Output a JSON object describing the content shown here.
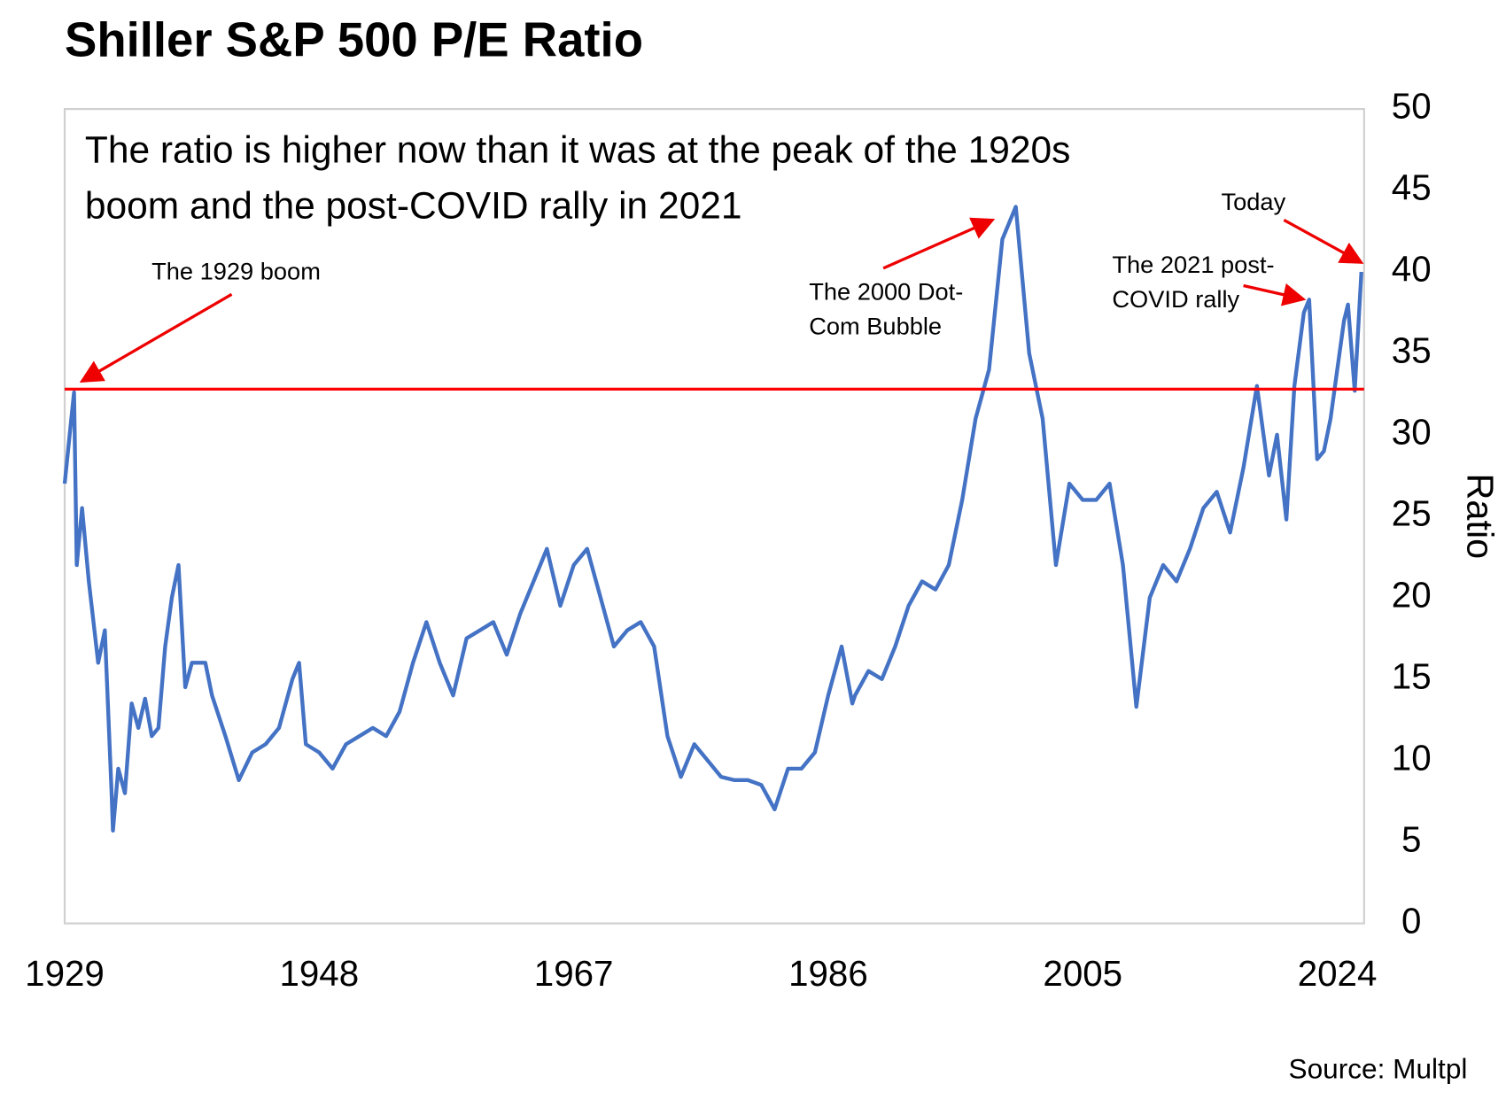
{
  "chart_data": {
    "type": "line",
    "title": "Shiller S&P 500 P/E Ratio",
    "subtitle": [
      "The ratio is higher now than it was at the peak of the 1920s",
      "boom and the post-COVID rally in 2021"
    ],
    "y_label": "Ratio",
    "source": "Source: Multpl",
    "color": "#4472c4",
    "x": [
      1929.0,
      1929.5,
      1929.7,
      1929.9,
      1930.3,
      1930.8,
      1931.5,
      1932.0,
      1932.5,
      1932.6,
      1933.0,
      1933.5,
      1934.0,
      1934.5,
      1935.0,
      1935.5,
      1936.0,
      1936.5,
      1937.0,
      1937.5,
      1938.0,
      1938.5,
      1939.5,
      1940,
      1941,
      1942,
      1943,
      1944,
      1945,
      1946,
      1946.5,
      1947,
      1948,
      1949,
      1950,
      1951,
      1952,
      1953,
      1954,
      1955,
      1956,
      1957,
      1958,
      1959,
      1960,
      1961,
      1962,
      1963,
      1964,
      1965,
      1966,
      1967,
      1968,
      1969,
      1970,
      1971,
      1972,
      1973,
      1974,
      1975,
      1976,
      1977,
      1978,
      1979,
      1980,
      1981,
      1982,
      1983,
      1984,
      1985,
      1986,
      1987,
      1987.8,
      1988,
      1989,
      1990,
      1991,
      1992,
      1993,
      1994,
      1995,
      1996,
      1997,
      1998,
      1999,
      2000,
      2001,
      2002,
      2003,
      2004,
      2005,
      2006,
      2007,
      2008,
      2009,
      2010,
      2011,
      2012,
      2013,
      2014,
      2015,
      2016,
      2017,
      2018,
      2018.9,
      2019.5,
      2020.2,
      2020.8,
      2021.5,
      2021.9,
      2022.5,
      2023,
      2023.5,
      2024,
      2024.5,
      2024.8,
      2025.3,
      2025.8
    ],
    "values": [
      27,
      31,
      32.6,
      22,
      25.5,
      21,
      16,
      18,
      8,
      5.7,
      9.5,
      8,
      13.5,
      12,
      13.8,
      11.5,
      12,
      17,
      20,
      22,
      14.5,
      16,
      16,
      14,
      11.5,
      8.8,
      10.5,
      11,
      12,
      15,
      16,
      11,
      10.5,
      9.5,
      11,
      11.5,
      12,
      11.5,
      13,
      16,
      18.5,
      16,
      14,
      17.5,
      18,
      18.5,
      16.5,
      19,
      21,
      23,
      19.5,
      22,
      23,
      20,
      17,
      18,
      18.5,
      17,
      11.5,
      9,
      11,
      10,
      9,
      8.8,
      8.8,
      8.5,
      7,
      9.5,
      9.5,
      10.5,
      14,
      17,
      13.5,
      14,
      15.5,
      15,
      17,
      19.5,
      21,
      20.5,
      22,
      26,
      31,
      34,
      42,
      44,
      35,
      31,
      22,
      27,
      26,
      26,
      27,
      22,
      13.3,
      20,
      22,
      21,
      23,
      25.5,
      26.5,
      24,
      28,
      33,
      27.5,
      30,
      24.8,
      33,
      37.5,
      38.3,
      28.5,
      29,
      31,
      34,
      37,
      38,
      32.7,
      40
    ],
    "reference_line": {
      "value": 32.8,
      "color": "#ff0000"
    },
    "annotations": [
      [
        "The 1929 boom"
      ],
      [
        "The 2000 Dot-",
        "Com Bubble"
      ],
      [
        "The 2021 post-",
        "COVID rally"
      ],
      [
        "Today"
      ]
    ],
    "xlim": [
      1929,
      2026
    ],
    "xticks": [
      1929,
      1948,
      1967,
      1986,
      2005,
      2024
    ],
    "ylim": [
      0,
      50
    ],
    "yticks": [
      0,
      5,
      10,
      15,
      20,
      25,
      30,
      35,
      40,
      45,
      50
    ]
  }
}
